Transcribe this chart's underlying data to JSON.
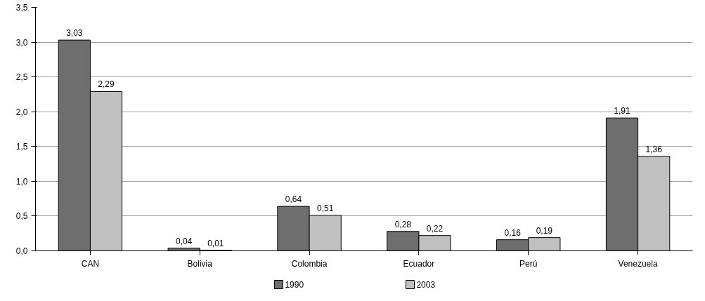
{
  "chart_data": {
    "type": "bar",
    "categories": [
      "CAN",
      "Bolivia",
      "Colombia",
      "Ecuador",
      "Perú",
      "Venezuela"
    ],
    "series": [
      {
        "name": "1990",
        "color": "#6e6e6e",
        "values": [
          3.03,
          0.04,
          0.64,
          0.28,
          0.16,
          1.91
        ],
        "value_labels": [
          "3,03",
          "0,04",
          "0,64",
          "0,28",
          "0,16",
          "1,91"
        ]
      },
      {
        "name": "2003",
        "color": "#c0c0c0",
        "values": [
          2.29,
          0.01,
          0.51,
          0.22,
          0.19,
          1.36
        ],
        "value_labels": [
          "2,29",
          "0,01",
          "0,51",
          "0,22",
          "0,19",
          "1,36"
        ]
      }
    ],
    "ylim": [
      0,
      3.5
    ],
    "yticks": [
      {
        "value": 0,
        "label": "0,0"
      },
      {
        "value": 0.5,
        "label": "0,5"
      },
      {
        "value": 1,
        "label": "1,0"
      },
      {
        "value": 1.5,
        "label": "1,5"
      },
      {
        "value": 2,
        "label": "2,0"
      },
      {
        "value": 2.5,
        "label": "2,5"
      },
      {
        "value": 3,
        "label": "3,0"
      },
      {
        "value": 3.5,
        "label": "3,5"
      }
    ],
    "grid": "y",
    "legend": "bottom"
  }
}
